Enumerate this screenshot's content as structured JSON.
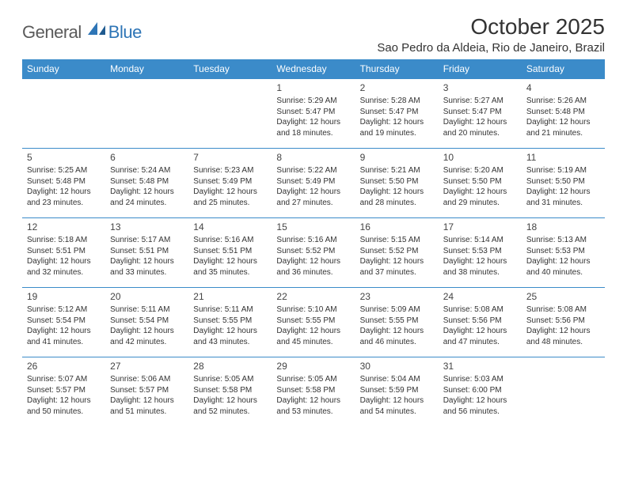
{
  "logo": {
    "general": "General",
    "blue": "Blue"
  },
  "title": "October 2025",
  "location": "Sao Pedro da Aldeia, Rio de Janeiro, Brazil",
  "colors": {
    "header_bg": "#3b8bc9",
    "header_text": "#ffffff",
    "border": "#3b8bc9",
    "text": "#333333",
    "logo_gray": "#5a5a5a",
    "logo_blue": "#2e75b6",
    "page_bg": "#ffffff"
  },
  "weekdays": [
    "Sunday",
    "Monday",
    "Tuesday",
    "Wednesday",
    "Thursday",
    "Friday",
    "Saturday"
  ],
  "weeks": [
    [
      null,
      null,
      null,
      {
        "n": "1",
        "sr": "Sunrise: 5:29 AM",
        "ss": "Sunset: 5:47 PM",
        "dl": "Daylight: 12 hours and 18 minutes."
      },
      {
        "n": "2",
        "sr": "Sunrise: 5:28 AM",
        "ss": "Sunset: 5:47 PM",
        "dl": "Daylight: 12 hours and 19 minutes."
      },
      {
        "n": "3",
        "sr": "Sunrise: 5:27 AM",
        "ss": "Sunset: 5:47 PM",
        "dl": "Daylight: 12 hours and 20 minutes."
      },
      {
        "n": "4",
        "sr": "Sunrise: 5:26 AM",
        "ss": "Sunset: 5:48 PM",
        "dl": "Daylight: 12 hours and 21 minutes."
      }
    ],
    [
      {
        "n": "5",
        "sr": "Sunrise: 5:25 AM",
        "ss": "Sunset: 5:48 PM",
        "dl": "Daylight: 12 hours and 23 minutes."
      },
      {
        "n": "6",
        "sr": "Sunrise: 5:24 AM",
        "ss": "Sunset: 5:48 PM",
        "dl": "Daylight: 12 hours and 24 minutes."
      },
      {
        "n": "7",
        "sr": "Sunrise: 5:23 AM",
        "ss": "Sunset: 5:49 PM",
        "dl": "Daylight: 12 hours and 25 minutes."
      },
      {
        "n": "8",
        "sr": "Sunrise: 5:22 AM",
        "ss": "Sunset: 5:49 PM",
        "dl": "Daylight: 12 hours and 27 minutes."
      },
      {
        "n": "9",
        "sr": "Sunrise: 5:21 AM",
        "ss": "Sunset: 5:50 PM",
        "dl": "Daylight: 12 hours and 28 minutes."
      },
      {
        "n": "10",
        "sr": "Sunrise: 5:20 AM",
        "ss": "Sunset: 5:50 PM",
        "dl": "Daylight: 12 hours and 29 minutes."
      },
      {
        "n": "11",
        "sr": "Sunrise: 5:19 AM",
        "ss": "Sunset: 5:50 PM",
        "dl": "Daylight: 12 hours and 31 minutes."
      }
    ],
    [
      {
        "n": "12",
        "sr": "Sunrise: 5:18 AM",
        "ss": "Sunset: 5:51 PM",
        "dl": "Daylight: 12 hours and 32 minutes."
      },
      {
        "n": "13",
        "sr": "Sunrise: 5:17 AM",
        "ss": "Sunset: 5:51 PM",
        "dl": "Daylight: 12 hours and 33 minutes."
      },
      {
        "n": "14",
        "sr": "Sunrise: 5:16 AM",
        "ss": "Sunset: 5:51 PM",
        "dl": "Daylight: 12 hours and 35 minutes."
      },
      {
        "n": "15",
        "sr": "Sunrise: 5:16 AM",
        "ss": "Sunset: 5:52 PM",
        "dl": "Daylight: 12 hours and 36 minutes."
      },
      {
        "n": "16",
        "sr": "Sunrise: 5:15 AM",
        "ss": "Sunset: 5:52 PM",
        "dl": "Daylight: 12 hours and 37 minutes."
      },
      {
        "n": "17",
        "sr": "Sunrise: 5:14 AM",
        "ss": "Sunset: 5:53 PM",
        "dl": "Daylight: 12 hours and 38 minutes."
      },
      {
        "n": "18",
        "sr": "Sunrise: 5:13 AM",
        "ss": "Sunset: 5:53 PM",
        "dl": "Daylight: 12 hours and 40 minutes."
      }
    ],
    [
      {
        "n": "19",
        "sr": "Sunrise: 5:12 AM",
        "ss": "Sunset: 5:54 PM",
        "dl": "Daylight: 12 hours and 41 minutes."
      },
      {
        "n": "20",
        "sr": "Sunrise: 5:11 AM",
        "ss": "Sunset: 5:54 PM",
        "dl": "Daylight: 12 hours and 42 minutes."
      },
      {
        "n": "21",
        "sr": "Sunrise: 5:11 AM",
        "ss": "Sunset: 5:55 PM",
        "dl": "Daylight: 12 hours and 43 minutes."
      },
      {
        "n": "22",
        "sr": "Sunrise: 5:10 AM",
        "ss": "Sunset: 5:55 PM",
        "dl": "Daylight: 12 hours and 45 minutes."
      },
      {
        "n": "23",
        "sr": "Sunrise: 5:09 AM",
        "ss": "Sunset: 5:55 PM",
        "dl": "Daylight: 12 hours and 46 minutes."
      },
      {
        "n": "24",
        "sr": "Sunrise: 5:08 AM",
        "ss": "Sunset: 5:56 PM",
        "dl": "Daylight: 12 hours and 47 minutes."
      },
      {
        "n": "25",
        "sr": "Sunrise: 5:08 AM",
        "ss": "Sunset: 5:56 PM",
        "dl": "Daylight: 12 hours and 48 minutes."
      }
    ],
    [
      {
        "n": "26",
        "sr": "Sunrise: 5:07 AM",
        "ss": "Sunset: 5:57 PM",
        "dl": "Daylight: 12 hours and 50 minutes."
      },
      {
        "n": "27",
        "sr": "Sunrise: 5:06 AM",
        "ss": "Sunset: 5:57 PM",
        "dl": "Daylight: 12 hours and 51 minutes."
      },
      {
        "n": "28",
        "sr": "Sunrise: 5:05 AM",
        "ss": "Sunset: 5:58 PM",
        "dl": "Daylight: 12 hours and 52 minutes."
      },
      {
        "n": "29",
        "sr": "Sunrise: 5:05 AM",
        "ss": "Sunset: 5:58 PM",
        "dl": "Daylight: 12 hours and 53 minutes."
      },
      {
        "n": "30",
        "sr": "Sunrise: 5:04 AM",
        "ss": "Sunset: 5:59 PM",
        "dl": "Daylight: 12 hours and 54 minutes."
      },
      {
        "n": "31",
        "sr": "Sunrise: 5:03 AM",
        "ss": "Sunset: 6:00 PM",
        "dl": "Daylight: 12 hours and 56 minutes."
      },
      null
    ]
  ]
}
